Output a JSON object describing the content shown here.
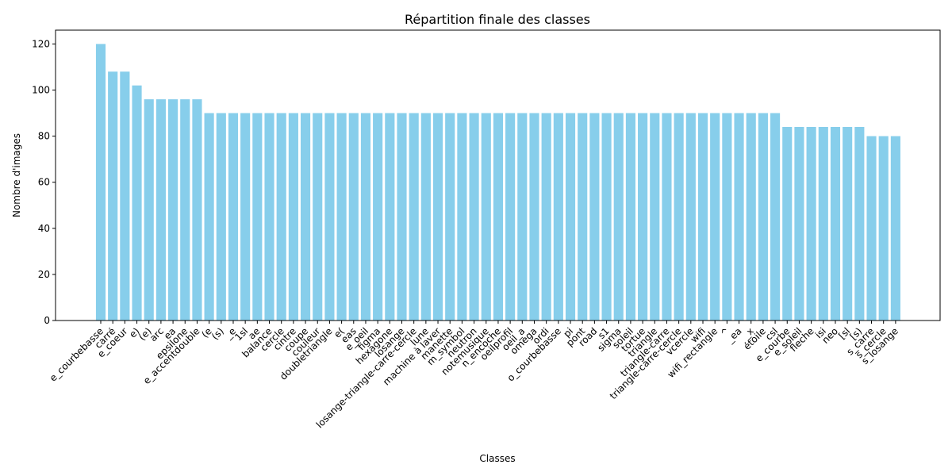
{
  "chart_data": {
    "type": "bar",
    "title": "Répartition finale des classes",
    "xlabel": "Classes",
    "ylabel": "Nombre d'images",
    "ylim": [
      0,
      126
    ],
    "yticks": [
      0,
      20,
      40,
      60,
      80,
      100,
      120
    ],
    "grid": false,
    "bar_color": "#87CEEB",
    "categories": [
      "e_courbebasse",
      "carré",
      "e_coeur",
      "e)",
      "(e)",
      "arc",
      "ea",
      "epsilone",
      "e_accentdouble",
      "(e",
      "(s)",
      "_e",
      "1sl",
      "ae",
      "balance",
      "cercle",
      "cintre",
      "coupe",
      "couleur",
      "doubletriangle",
      "e(",
      "eas",
      "e_oeil",
      "figma",
      "hexagone",
      "losange",
      "losange-triangle-carre-cercle",
      "lune",
      "machine à laver",
      "manette",
      "m_symbol",
      "neutron",
      "notemusique",
      "n_encoche",
      "oeilprofil",
      "oeil_a",
      "omega",
      "ordi",
      "o_courbebasse",
      "pi",
      "pont",
      "road",
      "s1",
      "sigma",
      "soleil",
      "tortue",
      "triangle",
      "triangle-carre",
      "triangle-carre-cercle",
      "vcercle",
      "wifi",
      "wifi_rectangle",
      "^",
      "_ea",
      "_x",
      "étoile",
      "csl",
      "e_courbe",
      "e_soleil",
      "fleche",
      "isi",
      "neo",
      "[sl",
      "[s)",
      "s_carre",
      "s_cercle",
      "s_losange"
    ],
    "values": [
      120,
      108,
      108,
      102,
      96,
      96,
      96,
      96,
      96,
      90,
      90,
      90,
      90,
      90,
      90,
      90,
      90,
      90,
      90,
      90,
      90,
      90,
      90,
      90,
      90,
      90,
      90,
      90,
      90,
      90,
      90,
      90,
      90,
      90,
      90,
      90,
      90,
      90,
      90,
      90,
      90,
      90,
      90,
      90,
      90,
      90,
      90,
      90,
      90,
      90,
      90,
      90,
      90,
      90,
      90,
      90,
      90,
      84,
      84,
      84,
      84,
      84,
      84,
      84,
      80,
      80,
      80
    ]
  }
}
